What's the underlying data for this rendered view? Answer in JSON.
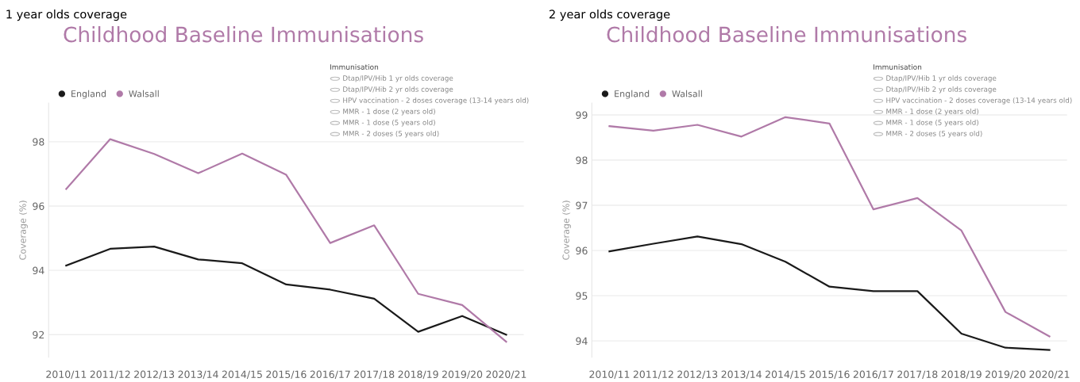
{
  "chart_data": [
    {
      "type": "line",
      "subtitle": "1 year olds coverage",
      "title": "Childhood Baseline Immunisations",
      "ylabel": "Coverage (%)",
      "categories": [
        "2010/11",
        "2011/12",
        "2012/13",
        "2013/14",
        "2014/15",
        "2015/16",
        "2016/17",
        "2017/18",
        "2018/19",
        "2019/20",
        "2020/21"
      ],
      "series": [
        {
          "name": "England",
          "color": "#1a1a1a",
          "values": [
            94.15,
            94.67,
            94.74,
            94.34,
            94.22,
            93.56,
            93.4,
            93.12,
            92.09,
            92.58,
            92.0
          ]
        },
        {
          "name": "Walsall",
          "color": "#b07aa8",
          "values": [
            96.53,
            98.08,
            97.62,
            97.02,
            97.63,
            96.97,
            94.85,
            95.4,
            93.27,
            92.92,
            91.78
          ]
        }
      ],
      "ylim": [
        91.3,
        99.2
      ],
      "yticks": [
        92,
        94,
        96,
        98
      ],
      "grid": "y",
      "legend": "top left",
      "marker": "none",
      "line_style": "solid",
      "annotations": [
        "Immunisation",
        "Dtap/IPV/Hib 1 yr olds coverage",
        "Dtap/IPV/Hib 2 yr olds coverage",
        "HPV vaccination - 2 doses coverage (13-14 years old)",
        "MMR - 1 dose (2 years old)",
        "MMR - 1 dose (5 years old)",
        "MMR - 2 doses (5 years old)"
      ]
    },
    {
      "type": "line",
      "subtitle": "2 year olds coverage",
      "title": "Childhood Baseline Immunisations",
      "ylabel": "Coverage (%)",
      "categories": [
        "2010/11",
        "2011/12",
        "2012/13",
        "2013/14",
        "2014/15",
        "2015/16",
        "2016/17",
        "2017/18",
        "2018/19",
        "2019/20",
        "2020/21"
      ],
      "series": [
        {
          "name": "England",
          "color": "#1a1a1a",
          "values": [
            95.98,
            96.15,
            96.31,
            96.14,
            95.75,
            95.2,
            95.1,
            95.1,
            94.16,
            93.85,
            93.8
          ]
        },
        {
          "name": "Walsall",
          "color": "#b07aa8",
          "values": [
            98.75,
            98.65,
            98.78,
            98.52,
            98.95,
            98.81,
            96.91,
            97.16,
            96.44,
            94.64,
            94.1
          ]
        }
      ],
      "ylim": [
        93.64,
        99.26
      ],
      "yticks": [
        94,
        95,
        96,
        97,
        98,
        99
      ],
      "grid": "y",
      "legend": "top left",
      "marker": "none",
      "line_style": "solid",
      "annotations": [
        "Immunisation",
        "Dtap/IPV/Hib 1 yr olds coverage",
        "Dtap/IPV/Hib 2 yr olds coverage",
        "HPV vaccination - 2 doses coverage (13-14 years old)",
        "MMR - 1 dose (2 years old)",
        "MMR - 1 dose (5 years old)",
        "MMR - 2 doses (5 years old)"
      ]
    }
  ]
}
